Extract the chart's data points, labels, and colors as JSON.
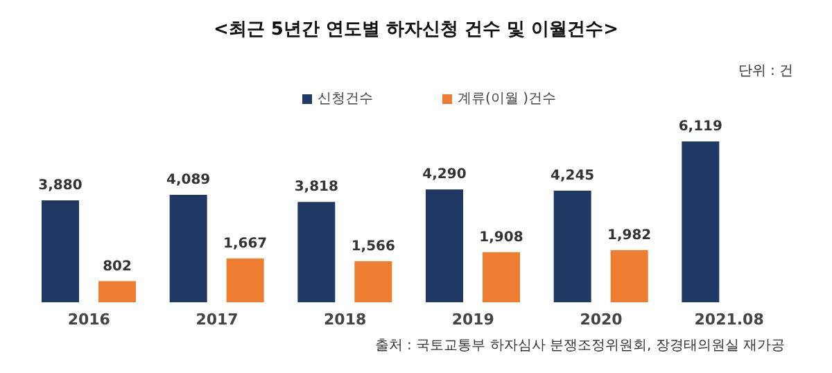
{
  "chart_data": {
    "type": "bar",
    "title": "<최근 5년간 연도별 하자신청 건수 및 이월건수>",
    "subtitle": "단위 : 건",
    "categories": [
      "2016",
      "2017",
      "2018",
      "2019",
      "2020",
      "2021.08"
    ],
    "series": [
      {
        "name": "신청건수",
        "color": "#203864",
        "values": [
          3880,
          4089,
          3818,
          4290,
          4245,
          6119
        ],
        "value_labels": [
          "3,880",
          "4,089",
          "3,818",
          "4,290",
          "4,245",
          "6,119"
        ]
      },
      {
        "name": "계류(이월 )건수",
        "color": "#ed7d31",
        "values": [
          802,
          1667,
          1566,
          1908,
          1982,
          null
        ],
        "value_labels": [
          "802",
          "1,667",
          "1,566",
          "1,908",
          "1,982",
          null
        ]
      }
    ],
    "legend": "top",
    "annotations": [
      "출처 : 국토교통부 하자심사 분쟁조정위원회, 장경태의원실 재가공"
    ]
  }
}
